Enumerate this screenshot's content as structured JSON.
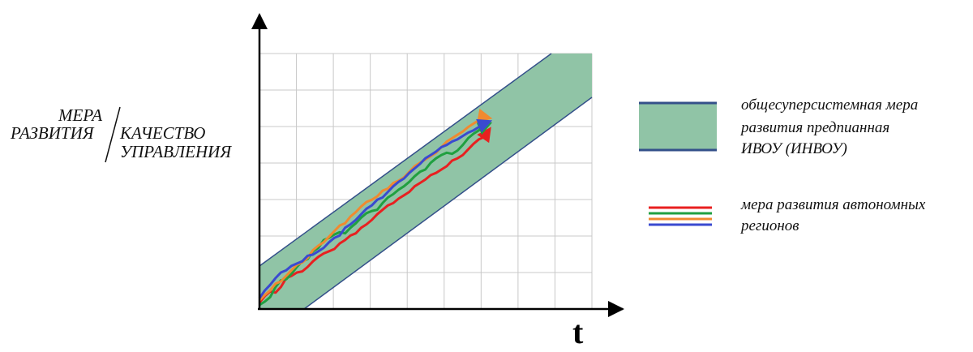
{
  "chart_data": {
    "type": "line",
    "xlabel": "t",
    "ylabel": {
      "line1": "МЕРА",
      "line2": "РАЗВИТИЯ",
      "line3": "КАЧЕСТВО",
      "line4": "УПРАВЛЕНИЯ"
    },
    "grid": true,
    "band": {
      "label_lines": [
        "общесуперсистемная мера",
        "развития предпианная",
        "ИВОУ (ИНВОУ)"
      ],
      "fill_color": "#90c4a6",
      "edge_color": "#34508a"
    },
    "series_legend": {
      "label_lines": [
        "мера развития автономных",
        "регионов"
      ]
    },
    "series": [
      {
        "color": "#e82020",
        "values": [
          0.2,
          0.8,
          1.2,
          1.1,
          1.6,
          2.4,
          2.6,
          2.9,
          3.0,
          3.4,
          3.9,
          4.3,
          4.6,
          4.8,
          5.0,
          5.5,
          5.8,
          6.2,
          6.4,
          6.9,
          7.2,
          7.6,
          8.1,
          8.5,
          8.9,
          9.1,
          9.5,
          9.8,
          10.1,
          10.6,
          10.9,
          11.2,
          11.6,
          11.8,
          12.1,
          12.4,
          12.9,
          13.1,
          13.4,
          13.9,
          14.4,
          14.8,
          15.0,
          15.7
        ]
      },
      {
        "color": "#20a040",
        "values": [
          0.0,
          0.3,
          0.7,
          1.6,
          2.2,
          2.3,
          2.8,
          3.4,
          3.9,
          4.1,
          4.8,
          5.1,
          5.8,
          6.0,
          6.3,
          6.5,
          6.4,
          6.9,
          7.3,
          7.8,
          8.2,
          8.4,
          8.5,
          9.1,
          9.6,
          9.9,
          10.3,
          10.6,
          11.0,
          11.5,
          11.9,
          12.1,
          12.7,
          13.1,
          13.4,
          13.6,
          13.5,
          13.8,
          14.3,
          14.9,
          15.3,
          15.6,
          16.0,
          16.2
        ]
      },
      {
        "color": "#f08a30",
        "values": [
          0.4,
          0.9,
          1.3,
          1.9,
          2.1,
          2.6,
          3.1,
          3.6,
          3.8,
          4.2,
          4.9,
          5.3,
          5.6,
          6.1,
          6.6,
          7.1,
          7.3,
          7.9,
          8.3,
          8.8,
          9.2,
          9.4,
          9.7,
          10.2,
          10.4,
          10.9,
          11.1,
          11.4,
          11.9,
          12.4,
          12.7,
          13.0,
          13.3,
          13.6,
          14.1,
          14.6,
          14.9,
          15.2,
          15.5,
          15.9,
          16.2,
          16.5,
          16.8,
          16.7
        ]
      },
      {
        "color": "#3a4ad0",
        "values": [
          0.6,
          1.3,
          1.8,
          2.4,
          2.9,
          3.1,
          3.5,
          3.7,
          3.9,
          4.4,
          4.5,
          4.8,
          5.1,
          5.6,
          6.0,
          6.2,
          6.9,
          7.2,
          7.6,
          8.1,
          8.6,
          8.9,
          9.4,
          9.6,
          10.1,
          10.6,
          11.0,
          11.3,
          11.8,
          12.2,
          12.6,
          13.1,
          13.4,
          13.7,
          14.1,
          14.3,
          14.6,
          14.8,
          15.1,
          15.4,
          15.6,
          15.9,
          16.2,
          16.4
        ]
      }
    ]
  }
}
